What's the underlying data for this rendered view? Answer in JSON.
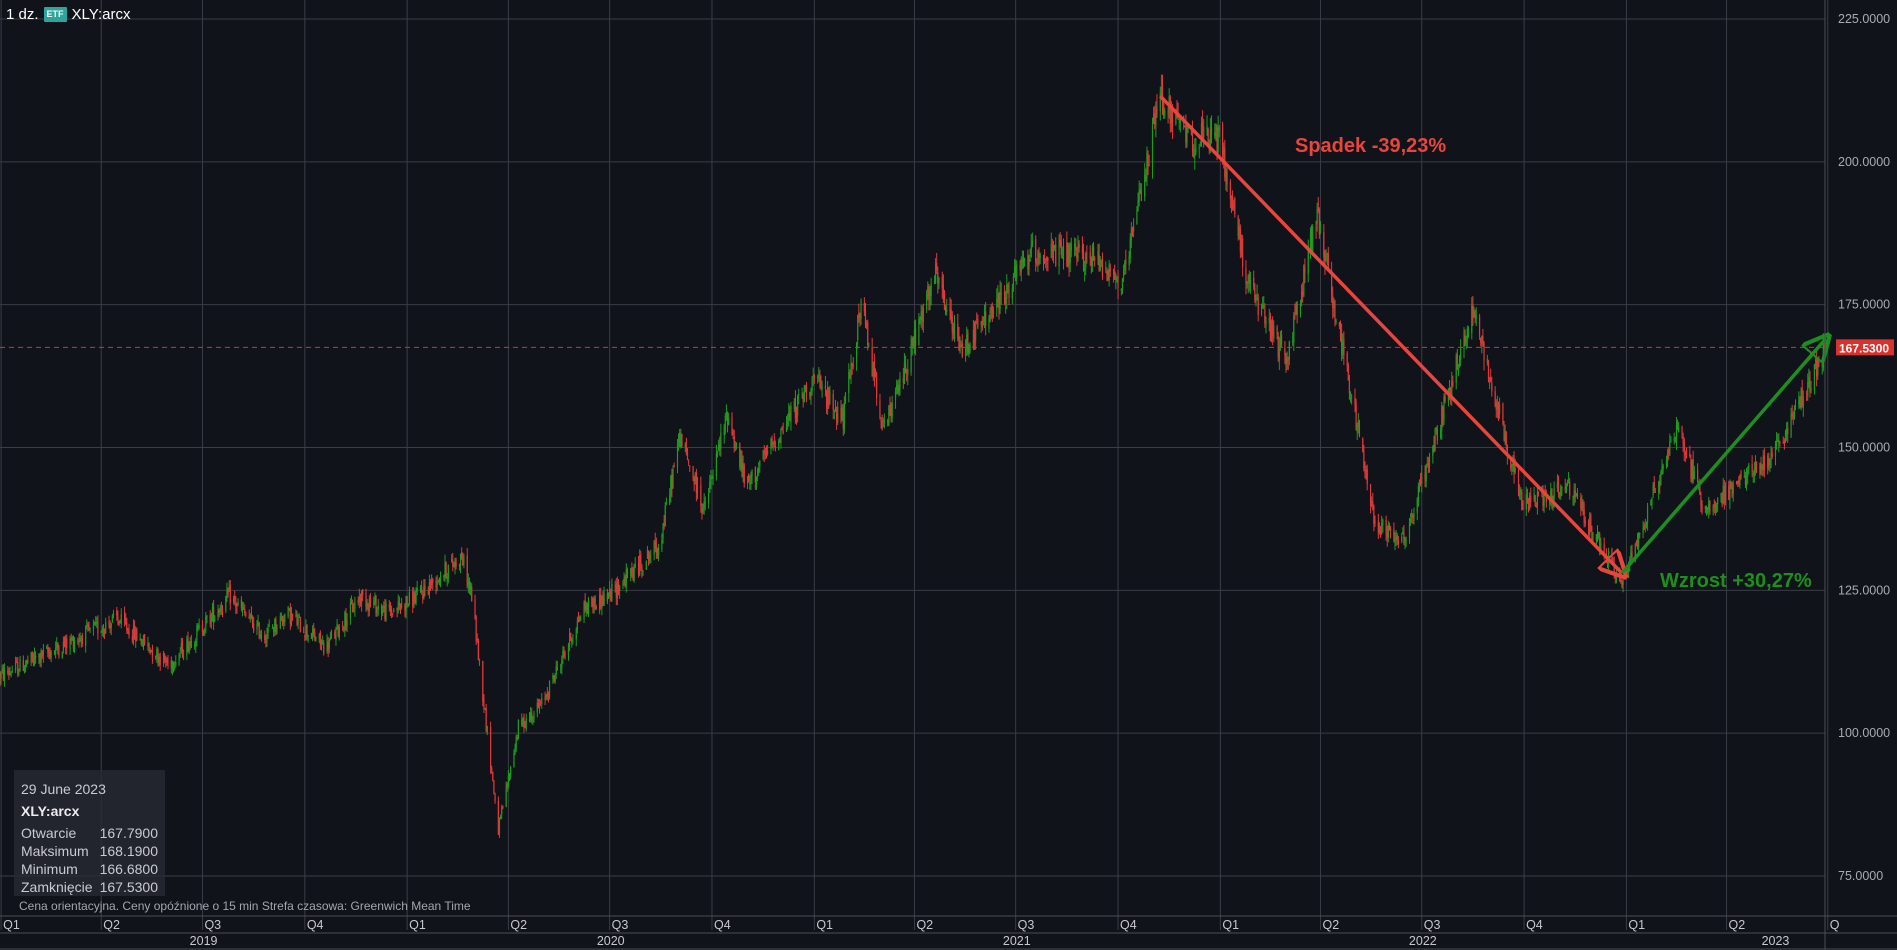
{
  "header": {
    "interval": "1 dz.",
    "badge": "ETF",
    "symbol": "XLY:arcx"
  },
  "info_panel": {
    "date": "29 June 2023",
    "symbol": "XLY:arcx",
    "rows": [
      {
        "label": "Otwarcie",
        "value": "167.7900"
      },
      {
        "label": "Maksimum",
        "value": "168.1900"
      },
      {
        "label": "Minimum",
        "value": "166.6800"
      },
      {
        "label": "Zamknięcie",
        "value": "167.5300"
      }
    ]
  },
  "footer_note": "Cena orientacyjna. Ceny opóźnione o 15 min    Strefa czasowa: Greenwich Mean Time",
  "colors": {
    "background": "#11131b",
    "grid": "#3a3d46",
    "up": "#1f9a1f",
    "down": "#e0393a",
    "decline": "#e8453c",
    "rise": "#1e8f1e"
  },
  "chart_data": {
    "type": "candlestick",
    "symbol": "XLY:arcx",
    "ylim": [
      71,
      225
    ],
    "yticks": [
      "225.0000",
      "200.0000",
      "175.0000",
      "150.0000",
      "125.0000",
      "100.0000",
      "75.0000"
    ],
    "ytick_values": [
      225,
      200,
      175,
      150,
      125,
      100,
      75
    ],
    "last_price": 167.53,
    "last_price_label": "167.5300",
    "x_range": [
      "2018-12-31",
      "2023-07-03"
    ],
    "quarter_ticks": [
      {
        "label": "Q1",
        "date": "2019-01-01"
      },
      {
        "label": "Q2",
        "date": "2019-04-01"
      },
      {
        "label": "Q3",
        "date": "2019-07-01"
      },
      {
        "label": "Q4",
        "date": "2019-10-01"
      },
      {
        "label": "Q1",
        "date": "2020-01-01"
      },
      {
        "label": "Q2",
        "date": "2020-04-01"
      },
      {
        "label": "Q3",
        "date": "2020-07-01"
      },
      {
        "label": "Q4",
        "date": "2020-10-01"
      },
      {
        "label": "Q1",
        "date": "2021-01-01"
      },
      {
        "label": "Q2",
        "date": "2021-04-01"
      },
      {
        "label": "Q3",
        "date": "2021-07-01"
      },
      {
        "label": "Q4",
        "date": "2021-10-01"
      },
      {
        "label": "Q1",
        "date": "2022-01-01"
      },
      {
        "label": "Q2",
        "date": "2022-04-01"
      },
      {
        "label": "Q3",
        "date": "2022-07-01"
      },
      {
        "label": "Q4",
        "date": "2022-10-01"
      },
      {
        "label": "Q1",
        "date": "2023-01-01"
      },
      {
        "label": "Q2",
        "date": "2023-04-01"
      },
      {
        "label": "Q",
        "date": "2023-07-01"
      }
    ],
    "year_labels": [
      {
        "label": "2019",
        "date": "2019-07-02"
      },
      {
        "label": "2020",
        "date": "2020-07-02"
      },
      {
        "label": "2021",
        "date": "2021-07-02"
      },
      {
        "label": "2022",
        "date": "2022-07-02"
      },
      {
        "label": "2023",
        "date": "2023-05-15"
      }
    ],
    "price_path": [
      [
        "2018-12-31",
        110
      ],
      [
        "2019-02-01",
        113
      ],
      [
        "2019-04-15",
        120
      ],
      [
        "2019-06-01",
        112
      ],
      [
        "2019-07-25",
        124
      ],
      [
        "2019-08-25",
        117
      ],
      [
        "2019-09-15",
        121
      ],
      [
        "2019-10-20",
        115
      ],
      [
        "2019-11-20",
        124
      ],
      [
        "2019-12-15",
        121
      ],
      [
        "2020-01-10",
        124
      ],
      [
        "2020-02-19",
        131
      ],
      [
        "2020-02-28",
        124
      ],
      [
        "2020-03-23",
        83
      ],
      [
        "2020-04-10",
        101
      ],
      [
        "2020-05-01",
        105
      ],
      [
        "2020-06-08",
        122
      ],
      [
        "2020-06-30",
        124
      ],
      [
        "2020-08-15",
        133
      ],
      [
        "2020-09-02",
        152
      ],
      [
        "2020-09-24",
        139
      ],
      [
        "2020-10-15",
        156
      ],
      [
        "2020-11-01",
        143
      ],
      [
        "2020-12-31",
        162
      ],
      [
        "2021-01-27",
        155
      ],
      [
        "2021-02-12",
        175
      ],
      [
        "2021-03-05",
        153
      ],
      [
        "2021-04-20",
        180
      ],
      [
        "2021-05-12",
        167
      ],
      [
        "2021-06-15",
        175
      ],
      [
        "2021-07-15",
        184
      ],
      [
        "2021-09-15",
        183
      ],
      [
        "2021-10-05",
        178
      ],
      [
        "2021-11-08",
        212
      ],
      [
        "2021-12-01",
        204
      ],
      [
        "2021-12-31",
        204
      ],
      [
        "2022-01-27",
        178
      ],
      [
        "2022-03-01",
        165
      ],
      [
        "2022-03-29",
        191
      ],
      [
        "2022-05-20",
        137
      ],
      [
        "2022-06-16",
        134
      ],
      [
        "2022-08-16",
        174
      ],
      [
        "2022-09-30",
        140
      ],
      [
        "2022-11-10",
        143
      ],
      [
        "2022-12-28",
        126
      ],
      [
        "2023-01-31",
        145
      ],
      [
        "2023-02-15",
        154
      ],
      [
        "2023-03-13",
        139
      ],
      [
        "2023-05-15",
        149
      ],
      [
        "2023-06-29",
        167.53
      ]
    ],
    "annotations": [
      {
        "type": "decline",
        "label": "Spadek -39,23%",
        "from": [
          "2021-11-08",
          211.5
        ],
        "to": [
          "2022-12-28",
          128
        ]
      },
      {
        "type": "rise",
        "label": "Wzrost +30,27%",
        "from": [
          "2022-12-28",
          128
        ],
        "to": [
          "2023-06-29",
          169
        ]
      }
    ]
  }
}
